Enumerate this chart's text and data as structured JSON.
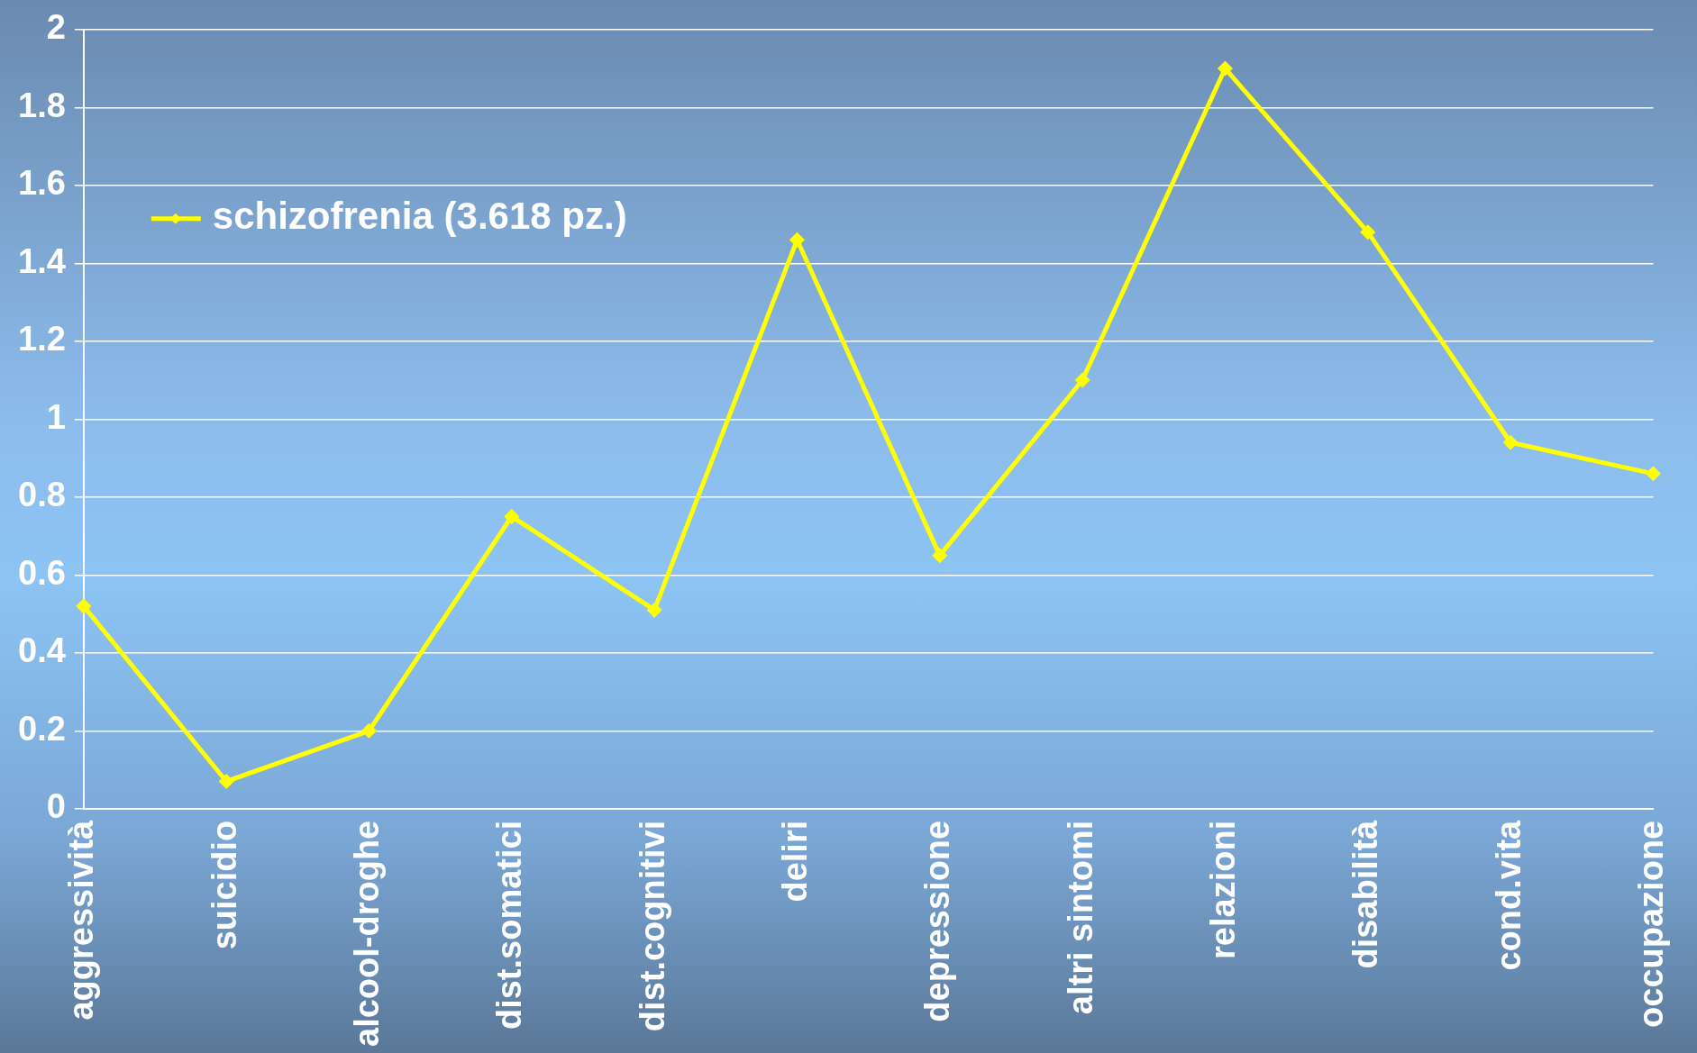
{
  "chart_data": {
    "type": "line",
    "categories": [
      "aggressività",
      "suicidio",
      "alcool-droghe",
      "dist.somatici",
      "dist.cognitivi",
      "deliri",
      "depressione",
      "altri sintomi",
      "relazioni",
      "disabilità",
      "cond.vita",
      "occupazione"
    ],
    "series": [
      {
        "name": "schizofrenia (3.618 pz.)",
        "color": "#ffff00",
        "values": [
          0.52,
          0.07,
          0.2,
          0.75,
          0.51,
          1.46,
          0.65,
          1.1,
          1.9,
          1.48,
          0.94,
          0.86
        ]
      }
    ],
    "ylim": [
      0,
      2
    ],
    "yticks": [
      0,
      0.2,
      0.4,
      0.6,
      0.8,
      1,
      1.2,
      1.4,
      1.6,
      1.8,
      2
    ],
    "grid": "y",
    "legend": "top left",
    "marker": "diamond",
    "line_style": "solid"
  }
}
